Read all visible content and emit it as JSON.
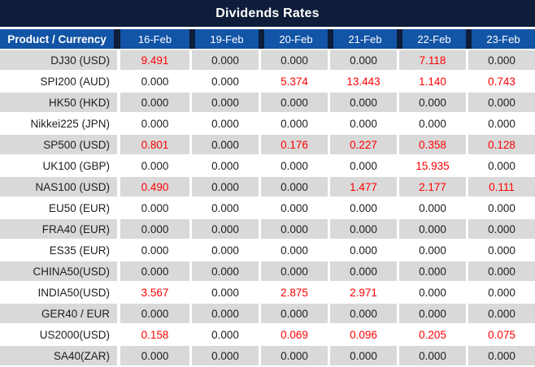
{
  "chart_data": {
    "type": "table",
    "title": "Dividends Rates",
    "columns": [
      "Product / Currency",
      "16-Feb",
      "19-Feb",
      "20-Feb",
      "21-Feb",
      "22-Feb",
      "23-Feb"
    ],
    "rows": [
      {
        "product": "DJ30 (USD)",
        "values": [
          "9.491",
          "0.000",
          "0.000",
          "0.000",
          "7.118",
          "0.000"
        ]
      },
      {
        "product": "SPI200 (AUD)",
        "values": [
          "0.000",
          "0.000",
          "5.374",
          "13.443",
          "1.140",
          "0.743"
        ]
      },
      {
        "product": "HK50 (HKD)",
        "values": [
          "0.000",
          "0.000",
          "0.000",
          "0.000",
          "0.000",
          "0.000"
        ]
      },
      {
        "product": "Nikkei225 (JPN)",
        "values": [
          "0.000",
          "0.000",
          "0.000",
          "0.000",
          "0.000",
          "0.000"
        ]
      },
      {
        "product": "SP500 (USD)",
        "values": [
          "0.801",
          "0.000",
          "0.176",
          "0.227",
          "0.358",
          "0.128"
        ]
      },
      {
        "product": "UK100 (GBP)",
        "values": [
          "0.000",
          "0.000",
          "0.000",
          "0.000",
          "15.935",
          "0.000"
        ]
      },
      {
        "product": "NAS100 (USD)",
        "values": [
          "0.490",
          "0.000",
          "0.000",
          "1.477",
          "2.177",
          "0.111"
        ]
      },
      {
        "product": "EU50 (EUR)",
        "values": [
          "0.000",
          "0.000",
          "0.000",
          "0.000",
          "0.000",
          "0.000"
        ]
      },
      {
        "product": "FRA40 (EUR)",
        "values": [
          "0.000",
          "0.000",
          "0.000",
          "0.000",
          "0.000",
          "0.000"
        ]
      },
      {
        "product": "ES35 (EUR)",
        "values": [
          "0.000",
          "0.000",
          "0.000",
          "0.000",
          "0.000",
          "0.000"
        ]
      },
      {
        "product": "CHINA50(USD)",
        "values": [
          "0.000",
          "0.000",
          "0.000",
          "0.000",
          "0.000",
          "0.000"
        ]
      },
      {
        "product": "INDIA50(USD)",
        "values": [
          "3.567",
          "0.000",
          "2.875",
          "2.971",
          "0.000",
          "0.000"
        ]
      },
      {
        "product": "GER40 / EUR",
        "values": [
          "0.000",
          "0.000",
          "0.000",
          "0.000",
          "0.000",
          "0.000"
        ]
      },
      {
        "product": "US2000(USD)",
        "values": [
          "0.158",
          "0.000",
          "0.069",
          "0.096",
          "0.205",
          "0.075"
        ]
      },
      {
        "product": "SA40(ZAR)",
        "values": [
          "0.000",
          "0.000",
          "0.000",
          "0.000",
          "0.000",
          "0.000"
        ]
      }
    ],
    "layout": {
      "legend": "none",
      "grid": "banded-rows"
    }
  },
  "colors": {
    "title_bar_bg": "#0e1d3a",
    "header_bg": "#1254a6",
    "alt_row_bg": "#d9d9d9",
    "nonzero_value_color": "#ff0000",
    "zero_value_color": "#202020"
  }
}
